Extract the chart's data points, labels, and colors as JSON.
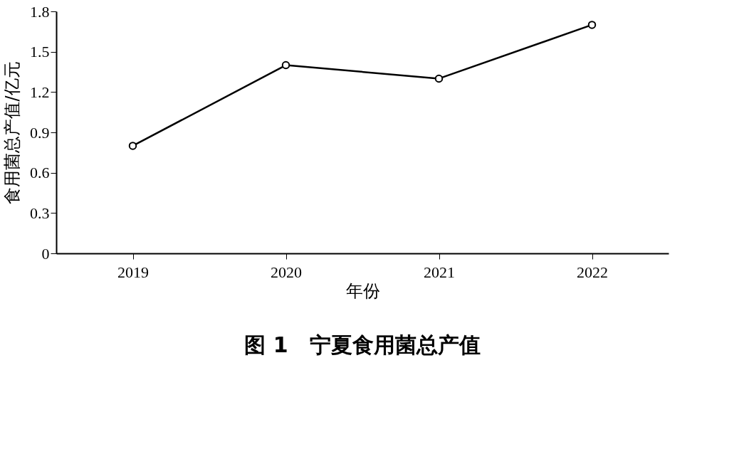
{
  "chart_data": {
    "type": "line",
    "title": "图 1　宁夏食用菌总产值",
    "xlabel": "年份",
    "ylabel": "食用菌总产值/亿元",
    "categories": [
      "2019",
      "2020",
      "2021",
      "2022"
    ],
    "series": [
      {
        "color": "#000000",
        "values": [
          0.8,
          1.4,
          1.3,
          1.7
        ]
      }
    ],
    "ylim": [
      0,
      1.8
    ],
    "yticks": [
      0,
      0.3,
      0.6,
      0.9,
      1.2,
      1.5,
      1.8
    ],
    "grid": false,
    "marker": "circle",
    "line_style": "solid"
  }
}
